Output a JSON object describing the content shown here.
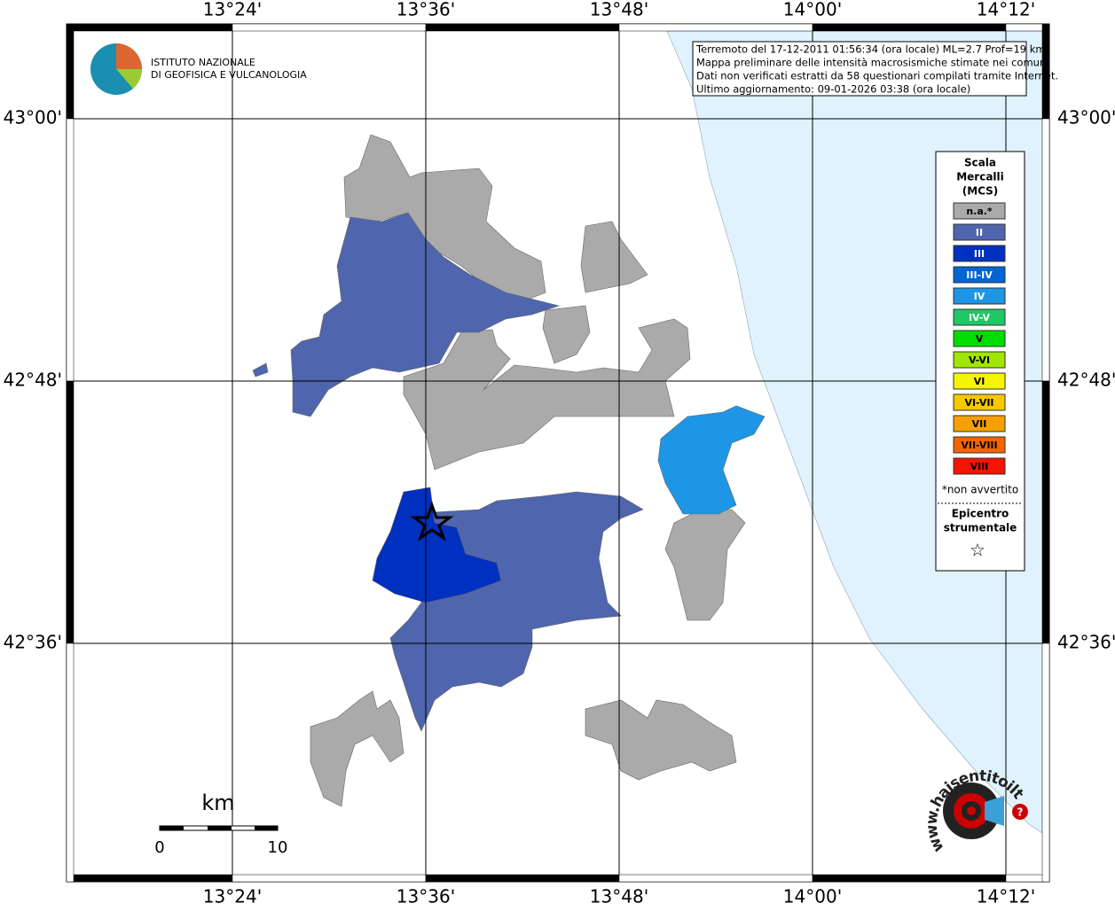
{
  "header": {
    "institute_line1": "ISTITUTO NAZIONALE",
    "institute_line2": "DI GEOFISICA E VULCANOLOGIA"
  },
  "info": [
    "Terremoto del 17-12-2011 01:56:34 (ora locale) ML=2.7 Prof=19 km",
    "Mappa preliminare delle intensità macrosismiche stimate nei comuni",
    "Dati non verificati estratti da 58 questionari compilati tramite Internet.",
    "Ultimo aggiornamento: 09-01-2026 03:38 (ora locale)"
  ],
  "map": {
    "lon_labels": [
      "13°24'",
      "13°36'",
      "13°48'",
      "14°00'",
      "14°12'"
    ],
    "lat_labels": [
      "43°00'",
      "42°48'",
      "42°36'"
    ]
  },
  "legend": {
    "title": [
      "Scala",
      "Mercalli",
      "(MCS)"
    ],
    "items": [
      {
        "label": "n.a.*",
        "color": "#aaaaaa"
      },
      {
        "label": "II",
        "color": "#4f65ad"
      },
      {
        "label": "III",
        "color": "#0030c0"
      },
      {
        "label": "III-IV",
        "color": "#0064d2"
      },
      {
        "label": "IV",
        "color": "#1e96e6"
      },
      {
        "label": "IV-V",
        "color": "#1ec864"
      },
      {
        "label": "V",
        "color": "#00dc00"
      },
      {
        "label": "V-VI",
        "color": "#a0e600"
      },
      {
        "label": "VI",
        "color": "#f5f500"
      },
      {
        "label": "VI-VII",
        "color": "#f5c800"
      },
      {
        "label": "VII",
        "color": "#f5a000"
      },
      {
        "label": "VII-VIII",
        "color": "#f56400"
      },
      {
        "label": "VIII",
        "color": "#f51400"
      }
    ],
    "note": "*non avvertito",
    "epicenter": [
      "Epicentro",
      "strumentale"
    ],
    "star": "☆"
  },
  "scale": {
    "unit": "km",
    "start": "0",
    "end": "10"
  },
  "brand": {
    "url": "www.haisentitoilterremoto.it",
    "mark": "?"
  }
}
